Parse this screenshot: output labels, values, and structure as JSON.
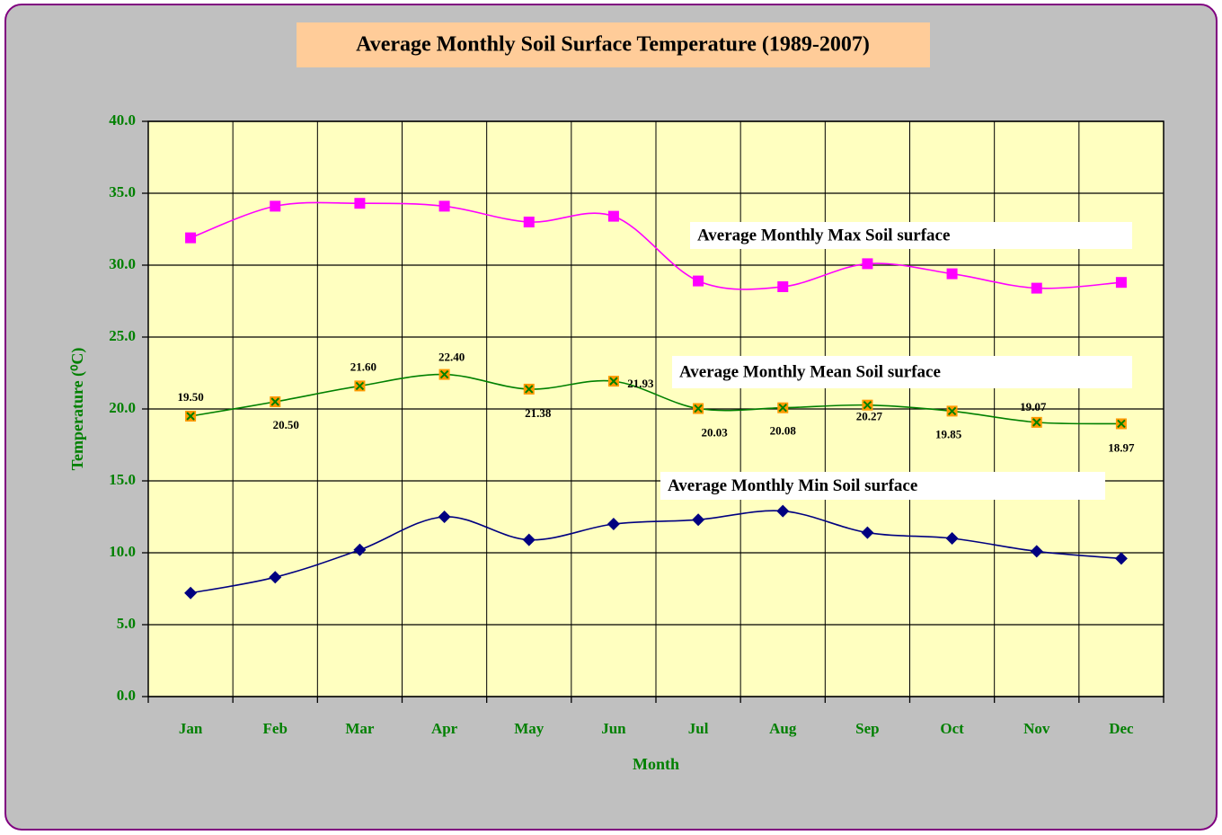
{
  "chart_data": {
    "type": "line",
    "title": "Average Monthly Soil Surface Temperature (1989-2007)",
    "x_label": "Month",
    "y_label": "Temperature (⁰C)",
    "categories": [
      "Jan",
      "Feb",
      "Mar",
      "Apr",
      "May",
      "Jun",
      "Jul",
      "Aug",
      "Sep",
      "Oct",
      "Nov",
      "Dec"
    ],
    "series": [
      {
        "name": "Average Monthly Max Soil surface",
        "color": "#ff00ff",
        "values": [
          31.9,
          34.1,
          34.3,
          34.1,
          33.0,
          33.4,
          28.9,
          28.5,
          30.1,
          29.4,
          28.4,
          28.8
        ]
      },
      {
        "name": "Average Monthly Mean Soil surface",
        "color": "#008000",
        "values": [
          19.5,
          20.5,
          21.6,
          22.4,
          21.38,
          21.93,
          20.03,
          20.08,
          20.27,
          19.85,
          19.07,
          18.97
        ],
        "value_labels": [
          "19.50",
          "20.50",
          "21.60",
          "22.40",
          "21.38",
          "21.93",
          "20.03",
          "20.08",
          "20.27",
          "19.85",
          "19.07",
          "18.97"
        ]
      },
      {
        "name": "Average Monthly Min Soil surface",
        "color": "#000080",
        "values": [
          7.2,
          8.3,
          10.2,
          12.5,
          10.9,
          12.0,
          12.3,
          12.9,
          11.4,
          11.0,
          10.1,
          9.6
        ]
      }
    ],
    "ylim": [
      0,
      40
    ],
    "yticks": [
      {
        "value": 0,
        "label": "0.0"
      },
      {
        "value": 5,
        "label": "5.0"
      },
      {
        "value": 10,
        "label": "10.0"
      },
      {
        "value": 15,
        "label": "15.0"
      },
      {
        "value": 20,
        "label": "20.0"
      },
      {
        "value": 25,
        "label": "25.0"
      },
      {
        "value": 30,
        "label": "30.0"
      },
      {
        "value": 35,
        "label": "35.0"
      },
      {
        "value": 40,
        "label": "40.0"
      }
    ],
    "grid": true
  }
}
